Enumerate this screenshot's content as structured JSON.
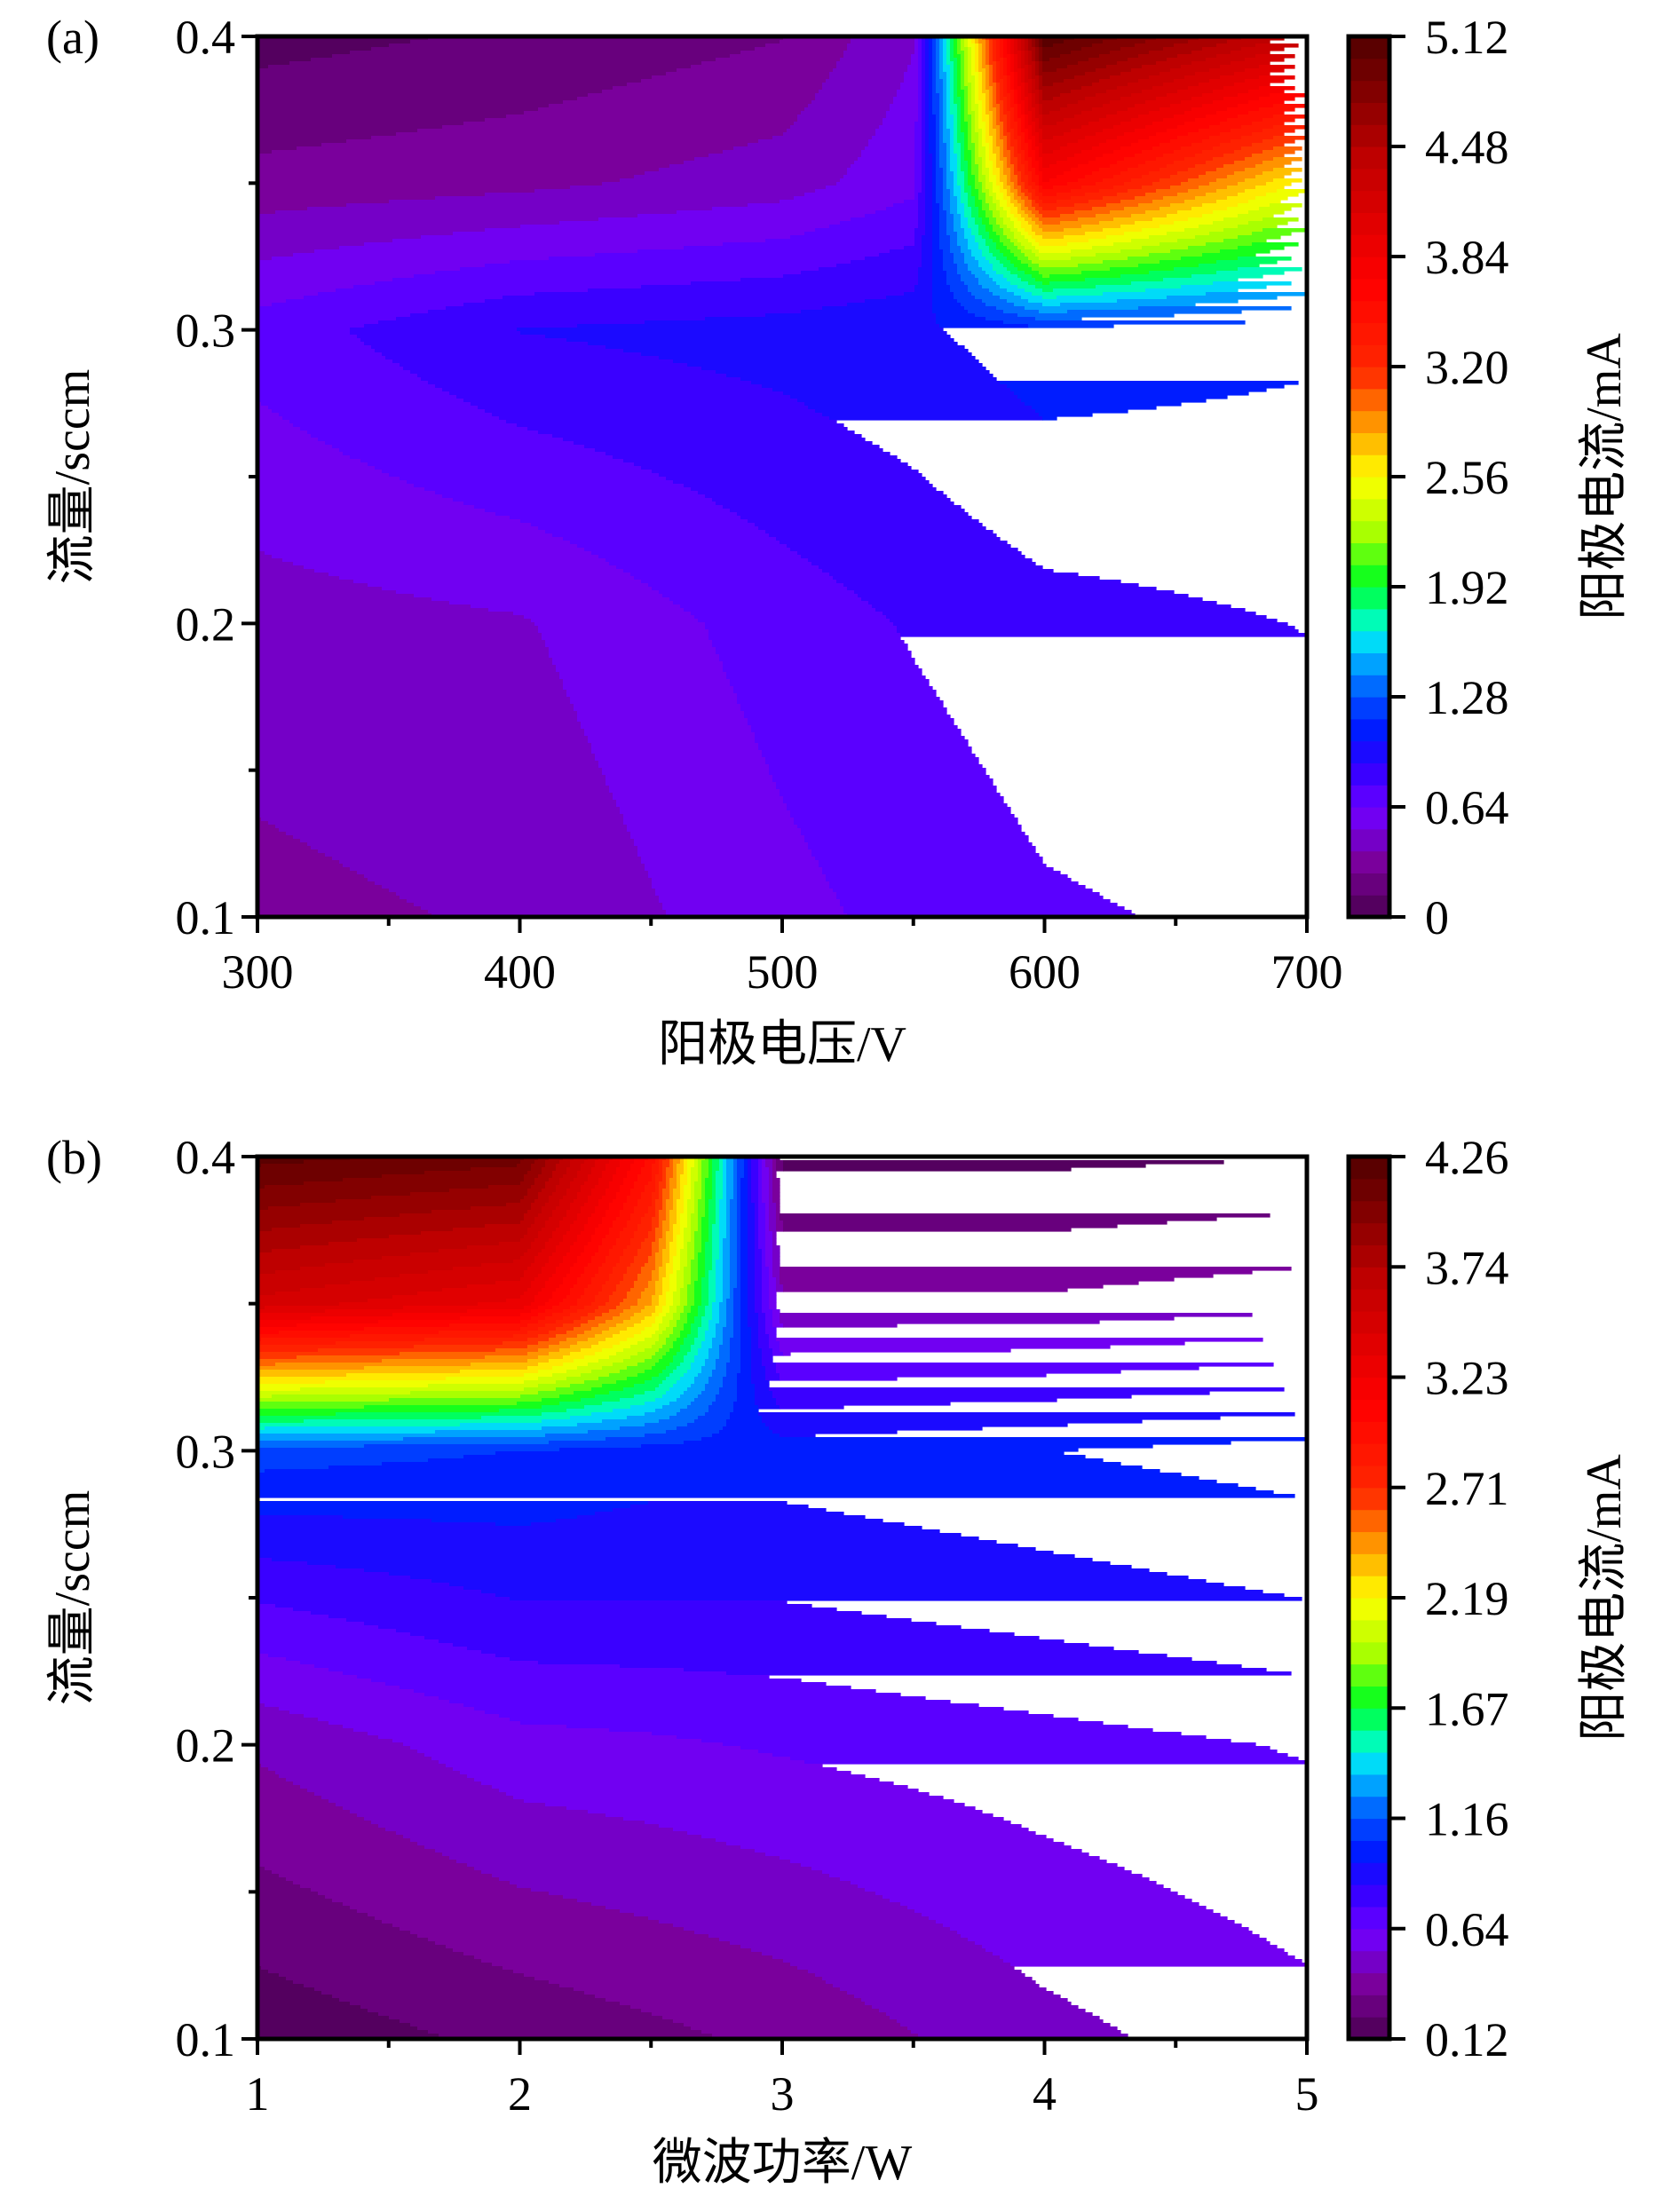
{
  "chart_data": [
    {
      "type": "heatmap",
      "panel_label": "(a)",
      "xlabel": "阳极电压/V",
      "ylabel": "流量/sccm",
      "colorbar_label": "阳极电流/mA",
      "xlim": [
        300,
        700
      ],
      "ylim": [
        0.1,
        0.4
      ],
      "x_ticks": [
        "300",
        "400",
        "500",
        "600",
        "700"
      ],
      "y_ticks": [
        "0.1",
        "0.2",
        "0.3",
        "0.4"
      ],
      "colorbar_range": [
        0,
        5.12
      ],
      "colorbar_ticks": [
        "0",
        "0.64",
        "1.28",
        "1.92",
        "2.56",
        "3.20",
        "3.84",
        "4.48",
        "5.12"
      ],
      "grid_x": [
        300,
        400,
        500,
        550,
        600,
        700
      ],
      "grid_y": [
        0.1,
        0.2,
        0.3,
        0.35,
        0.4
      ],
      "z": [
        [
          0.35,
          0.4,
          0.6,
          0.68,
          0.75,
          0.8
        ],
        [
          0.45,
          0.5,
          0.7,
          0.78,
          0.85,
          0.9
        ],
        [
          0.7,
          0.9,
          0.95,
          1.0,
          1.1,
          1.05
        ],
        [
          0.3,
          0.35,
          0.45,
          0.6,
          3.7,
          2.5
        ],
        [
          0.08,
          0.15,
          0.25,
          0.5,
          5.1,
          4.3
        ]
      ]
    },
    {
      "type": "heatmap",
      "panel_label": "(b)",
      "xlabel": "微波功率/W",
      "ylabel": "流量/sccm",
      "colorbar_label": "阳极电流/mA",
      "xlim": [
        1,
        5
      ],
      "ylim": [
        0.1,
        0.4
      ],
      "x_ticks": [
        "1",
        "2",
        "3",
        "4",
        "5"
      ],
      "y_ticks": [
        "0.1",
        "0.2",
        "0.3",
        "0.4"
      ],
      "colorbar_range": [
        0.12,
        4.26
      ],
      "colorbar_ticks": [
        "0.12",
        "0.64",
        "1.16",
        "1.67",
        "2.19",
        "2.71",
        "3.23",
        "3.74",
        "4.26"
      ],
      "grid_x": [
        1,
        2,
        2.5,
        3,
        4,
        5
      ],
      "grid_y": [
        0.1,
        0.2,
        0.25,
        0.3,
        0.35,
        0.4
      ],
      "z": [
        [
          0.15,
          0.25,
          0.3,
          0.35,
          0.5,
          0.6
        ],
        [
          0.45,
          0.6,
          0.62,
          0.65,
          0.7,
          0.75
        ],
        [
          0.75,
          0.85,
          0.85,
          0.85,
          0.9,
          0.95
        ],
        [
          1.1,
          1.05,
          1.0,
          1.0,
          1.05,
          1.1
        ],
        [
          3.5,
          3.3,
          2.4,
          0.45,
          0.45,
          0.5
        ],
        [
          4.2,
          4.1,
          3.0,
          0.2,
          0.2,
          0.22
        ]
      ]
    }
  ]
}
